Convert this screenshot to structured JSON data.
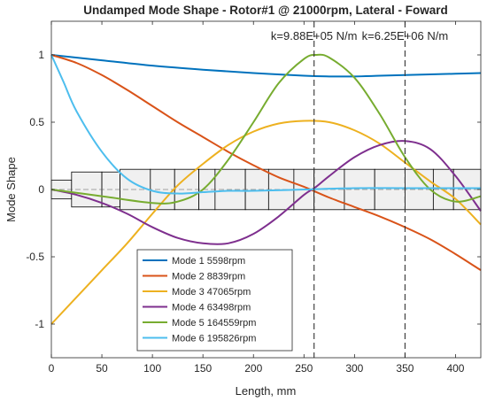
{
  "chart_data": {
    "type": "line",
    "title": "Undamped Mode Shape - Rotor#1 @ 21000rpm, Lateral - Foward",
    "xlabel": "Length, mm",
    "ylabel": "Mode Shape",
    "xlim": [
      0,
      425
    ],
    "ylim": [
      -1.25,
      1.25
    ],
    "xticks": [
      0,
      50,
      100,
      150,
      200,
      250,
      300,
      350,
      400
    ],
    "yticks": [
      -1,
      -0.5,
      0,
      0.5,
      1
    ],
    "yticklabels": [
      "-1",
      "-0.5",
      "0",
      "0.5",
      "1"
    ],
    "grid": false,
    "legend_position": "bottom-center",
    "annotations": [
      {
        "text": "k=9.88E+05 N/m",
        "x": 260
      },
      {
        "text": "k=6.25E+06 N/m",
        "x": 350
      }
    ],
    "bearing_lines_x": [
      260,
      350
    ],
    "rotor_elements": [
      {
        "x0": 0,
        "x1": 20,
        "r": 0.07
      },
      {
        "x0": 20,
        "x1": 50,
        "r": 0.13
      },
      {
        "x0": 50,
        "x1": 68,
        "r": 0.13
      },
      {
        "x0": 68,
        "x1": 98,
        "r": 0.15
      },
      {
        "x0": 98,
        "x1": 122,
        "r": 0.15
      },
      {
        "x0": 122,
        "x1": 146,
        "r": 0.15
      },
      {
        "x0": 146,
        "x1": 162,
        "r": 0.15
      },
      {
        "x0": 162,
        "x1": 192,
        "r": 0.15
      },
      {
        "x0": 192,
        "x1": 215,
        "r": 0.15
      },
      {
        "x0": 215,
        "x1": 240,
        "r": 0.15
      },
      {
        "x0": 240,
        "x1": 260,
        "r": 0.15
      },
      {
        "x0": 260,
        "x1": 290,
        "r": 0.15
      },
      {
        "x0": 290,
        "x1": 320,
        "r": 0.15
      },
      {
        "x0": 320,
        "x1": 350,
        "r": 0.15
      },
      {
        "x0": 350,
        "x1": 378,
        "r": 0.15
      },
      {
        "x0": 378,
        "x1": 398,
        "r": 0.15
      },
      {
        "x0": 398,
        "x1": 425,
        "r": 0.15
      }
    ],
    "series": [
      {
        "name": "Mode 1 5598rpm",
        "color": "#0072BD",
        "x": [
          0,
          50,
          100,
          150,
          200,
          250,
          275,
          300,
          325,
          350,
          375,
          400,
          425
        ],
        "y": [
          1.0,
          0.96,
          0.92,
          0.89,
          0.865,
          0.845,
          0.84,
          0.84,
          0.845,
          0.85,
          0.855,
          0.86,
          0.865
        ]
      },
      {
        "name": "Mode 2 8839rpm",
        "color": "#D95319",
        "x": [
          0,
          25,
          50,
          75,
          100,
          125,
          150,
          175,
          200,
          225,
          250,
          275,
          300,
          325,
          350,
          375,
          400,
          425
        ],
        "y": [
          1.0,
          0.94,
          0.85,
          0.74,
          0.62,
          0.5,
          0.39,
          0.28,
          0.18,
          0.09,
          0.02,
          -0.06,
          -0.13,
          -0.2,
          -0.28,
          -0.37,
          -0.48,
          -0.6
        ]
      },
      {
        "name": "Mode 3 47065rpm",
        "color": "#EDB120",
        "x": [
          0,
          25,
          50,
          75,
          100,
          125,
          150,
          175,
          200,
          225,
          250,
          275,
          300,
          325,
          350,
          375,
          400,
          425
        ],
        "y": [
          -1.0,
          -0.8,
          -0.6,
          -0.4,
          -0.18,
          0.03,
          0.19,
          0.33,
          0.43,
          0.49,
          0.51,
          0.5,
          0.44,
          0.34,
          0.2,
          0.06,
          -0.07,
          -0.26
        ]
      },
      {
        "name": "Mode 4 63498rpm",
        "color": "#7E2F8E",
        "x": [
          0,
          25,
          50,
          75,
          100,
          125,
          150,
          175,
          200,
          225,
          250,
          262,
          275,
          300,
          325,
          350,
          375,
          400,
          425
        ],
        "y": [
          0.0,
          -0.04,
          -0.1,
          -0.18,
          -0.28,
          -0.36,
          -0.4,
          -0.4,
          -0.33,
          -0.2,
          -0.04,
          0.02,
          0.1,
          0.24,
          0.33,
          0.36,
          0.3,
          0.1,
          -0.16
        ]
      },
      {
        "name": "Mode 5 164559rpm",
        "color": "#77AC30",
        "x": [
          0,
          50,
          100,
          125,
          150,
          175,
          200,
          225,
          250,
          262,
          275,
          300,
          325,
          350,
          375,
          400,
          425
        ],
        "y": [
          0.0,
          -0.05,
          -0.1,
          -0.09,
          0.0,
          0.22,
          0.5,
          0.79,
          0.97,
          1.0,
          0.98,
          0.83,
          0.56,
          0.24,
          0.0,
          -0.09,
          -0.05
        ]
      },
      {
        "name": "Mode 6 195826rpm",
        "color": "#4DBEEE",
        "x": [
          0,
          12,
          25,
          50,
          75,
          100,
          125,
          150,
          175,
          200,
          250,
          300,
          350,
          400,
          425
        ],
        "y": [
          1.0,
          0.8,
          0.58,
          0.28,
          0.08,
          -0.01,
          -0.03,
          -0.02,
          -0.01,
          -0.01,
          0.0,
          0.01,
          0.01,
          0.01,
          0.01
        ]
      }
    ]
  }
}
